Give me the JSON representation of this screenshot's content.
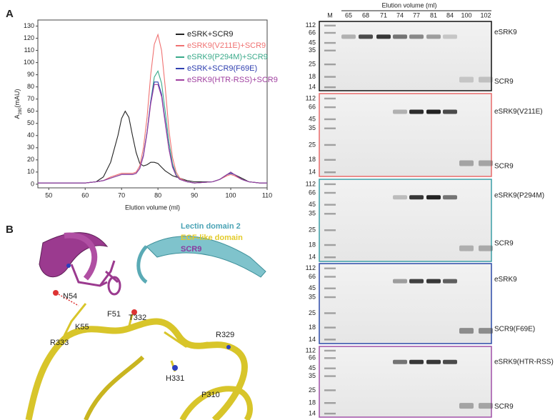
{
  "panel_labels": [
    "A",
    "B"
  ],
  "chart_data": {
    "type": "line",
    "xlabel": "Elution volume (ml)",
    "ylabel": [
      "A",
      "280",
      "(mAU)"
    ],
    "xlim": [
      47,
      110
    ],
    "ylim": [
      -3,
      135
    ],
    "xticks": [
      50,
      60,
      70,
      80,
      90,
      100,
      110
    ],
    "yticks": [
      0,
      10,
      20,
      30,
      40,
      50,
      60,
      70,
      80,
      90,
      100,
      110,
      120,
      130
    ],
    "legend": "upper right",
    "x": [
      47,
      50,
      55,
      60,
      63,
      65,
      67,
      69,
      70,
      71,
      72,
      73,
      74,
      75,
      76,
      77,
      78,
      79,
      80,
      81,
      82,
      83,
      84,
      85,
      86,
      88,
      90,
      95,
      97,
      99,
      100,
      101,
      103,
      105,
      108,
      110
    ],
    "series": [
      {
        "name": "eSRK+SCR9",
        "color": "#222222",
        "values": [
          1,
          1,
          1,
          1,
          2,
          6,
          18,
          40,
          54,
          60,
          55,
          40,
          26,
          17,
          15,
          16,
          18,
          18,
          17,
          14,
          11,
          9,
          7,
          6,
          5,
          3,
          2,
          2,
          4,
          8,
          9,
          8,
          5,
          2,
          1,
          1
        ]
      },
      {
        "name": "eSRK9(V211E)+SCR9",
        "color": "#f07272",
        "values": [
          1,
          1,
          1,
          1,
          2,
          3,
          6,
          8,
          9,
          9,
          9,
          9,
          10,
          15,
          30,
          55,
          90,
          115,
          123,
          110,
          80,
          45,
          22,
          10,
          5,
          2,
          1,
          2,
          4,
          7,
          8,
          7,
          4,
          2,
          1,
          1
        ]
      },
      {
        "name": "eSRK9(P294M)+SCR9",
        "color": "#3aaa8a",
        "values": [
          1,
          1,
          1,
          1,
          2,
          3,
          5,
          7,
          8,
          8,
          8,
          8,
          9,
          13,
          24,
          43,
          68,
          88,
          93,
          83,
          60,
          35,
          17,
          8,
          4,
          2,
          1,
          2,
          4,
          8,
          10,
          8,
          4,
          2,
          1,
          1
        ]
      },
      {
        "name": "eSRK+SCR9(F69E)",
        "color": "#3040b0",
        "values": [
          1,
          1,
          1,
          1,
          2,
          3,
          5,
          7,
          8,
          8,
          8,
          8,
          9,
          13,
          24,
          43,
          68,
          84,
          84,
          74,
          52,
          30,
          15,
          7,
          4,
          2,
          1,
          2,
          4,
          8,
          9,
          8,
          4,
          2,
          1,
          1
        ]
      },
      {
        "name": "eSRK9(HTR-RSS)+SCR9",
        "color": "#a040a0",
        "values": [
          1,
          1,
          1,
          1,
          2,
          3,
          5,
          7,
          8,
          8,
          8,
          8,
          9,
          13,
          23,
          42,
          66,
          82,
          82,
          72,
          50,
          29,
          14,
          7,
          4,
          2,
          1,
          2,
          4,
          8,
          10,
          8,
          4,
          2,
          1,
          1
        ]
      }
    ]
  },
  "gels": {
    "title": "Elution volume (ml)",
    "lanes": [
      "M",
      "65",
      "68",
      "71",
      "74",
      "77",
      "81",
      "84",
      "100",
      "102"
    ],
    "panels": [
      {
        "mw": [
          112,
          66,
          45,
          35,
          25,
          18,
          14
        ],
        "labels": [
          "eSRK9",
          "SCR9"
        ]
      },
      {
        "mw": [
          112,
          66,
          45,
          35,
          25,
          18,
          14
        ],
        "labels": [
          "eSRK9(V211E)",
          "SCR9"
        ]
      },
      {
        "mw": [
          112,
          66,
          45,
          35,
          25,
          18,
          14
        ],
        "labels": [
          "eSRK9(P294M)",
          "SCR9"
        ]
      },
      {
        "mw": [
          112,
          66,
          45,
          35,
          25,
          18,
          14
        ],
        "labels": [
          "eSRK9",
          "SCR9(F69E)"
        ]
      },
      {
        "mw": [
          112,
          66,
          45,
          35,
          25,
          18,
          14
        ],
        "labels": [
          "eSRK9(HTR-RSS)",
          "SCR9"
        ]
      }
    ]
  },
  "structure": {
    "legend": [
      "Lectin domain 2",
      "EGF-like domain",
      "SCR9"
    ],
    "residues": [
      "N54",
      "F51",
      "K55",
      "T332",
      "R333",
      "R329",
      "H331",
      "P310"
    ]
  }
}
